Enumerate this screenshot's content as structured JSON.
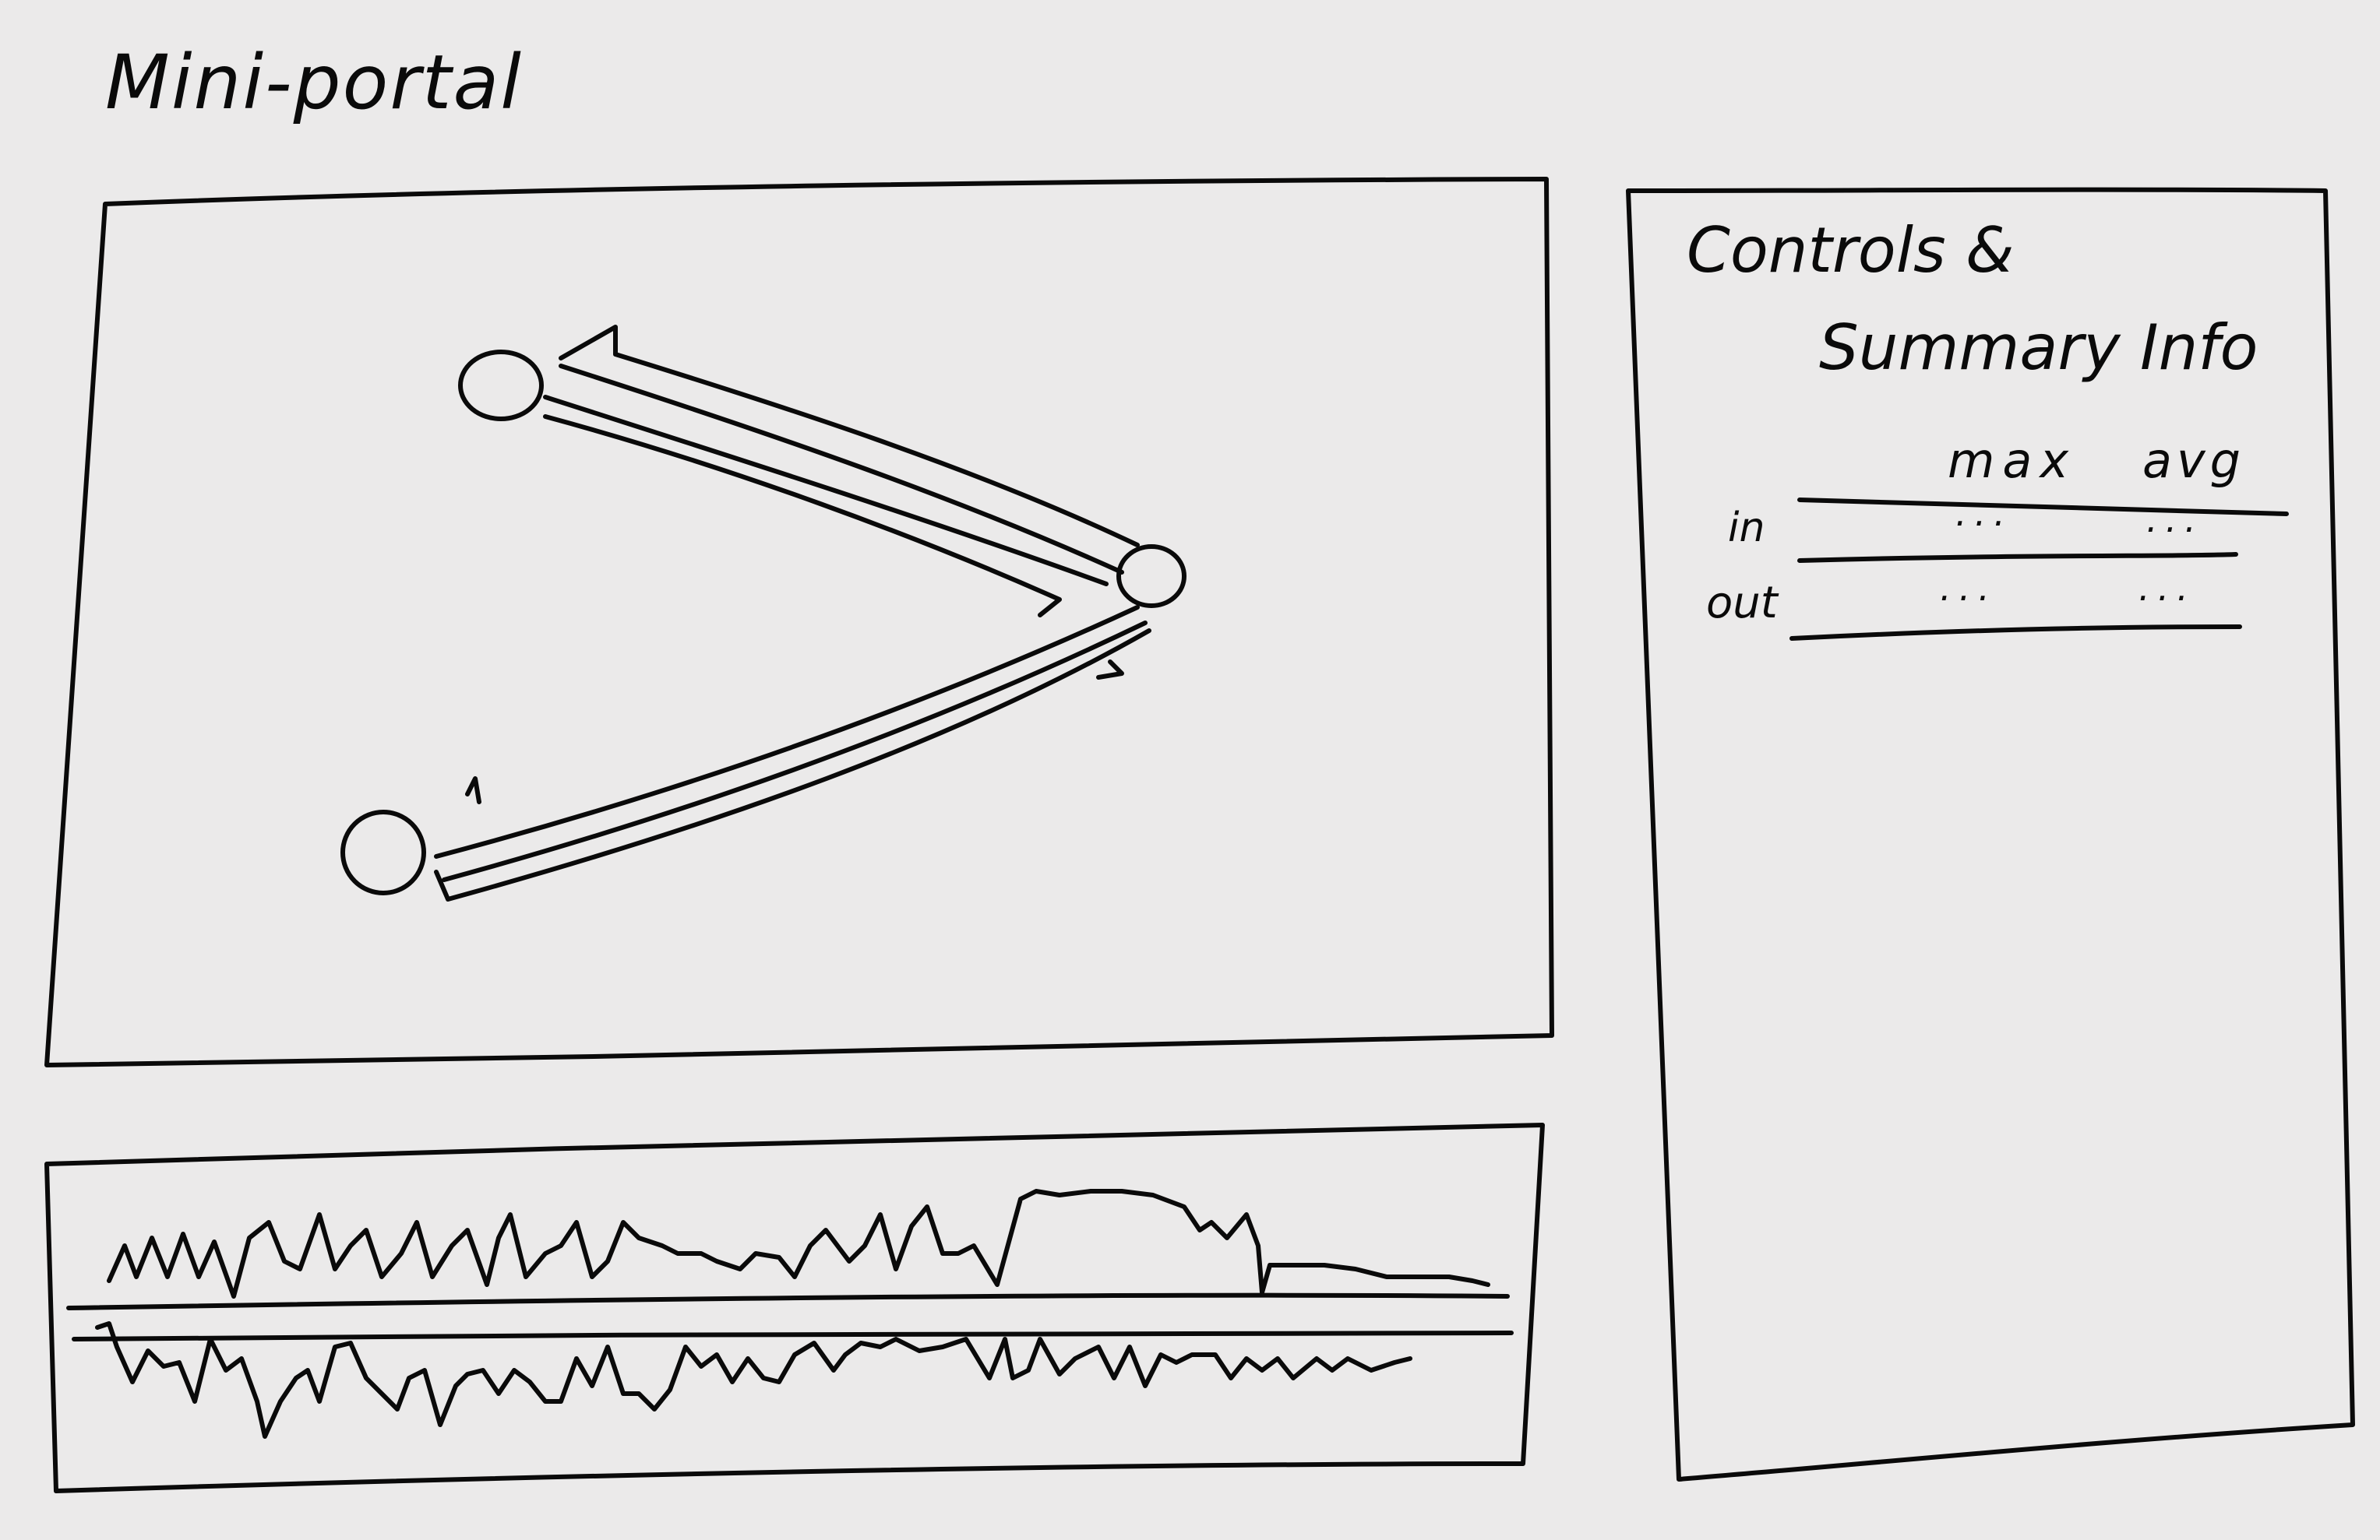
{
  "header": {
    "title": "Mini-portal"
  },
  "graph_panel": {
    "nodes": [
      "node-a",
      "node-b",
      "node-c"
    ],
    "edges": [
      {
        "from": "node-b",
        "to": "node-a"
      },
      {
        "from": "node-b",
        "to": "node-c"
      }
    ]
  },
  "timeline_panel": {
    "series": [
      "in",
      "out"
    ]
  },
  "side_panel": {
    "title_line1": "Controls &",
    "title_line2": "Summary Info",
    "columns": [
      "max",
      "avg"
    ],
    "rows": [
      {
        "label": "in",
        "max": "...",
        "avg": "..."
      },
      {
        "label": "out",
        "max": "...",
        "avg": "..."
      }
    ]
  },
  "colors": {
    "ink": "#0a0a0a",
    "paper": "#ebeaea"
  }
}
